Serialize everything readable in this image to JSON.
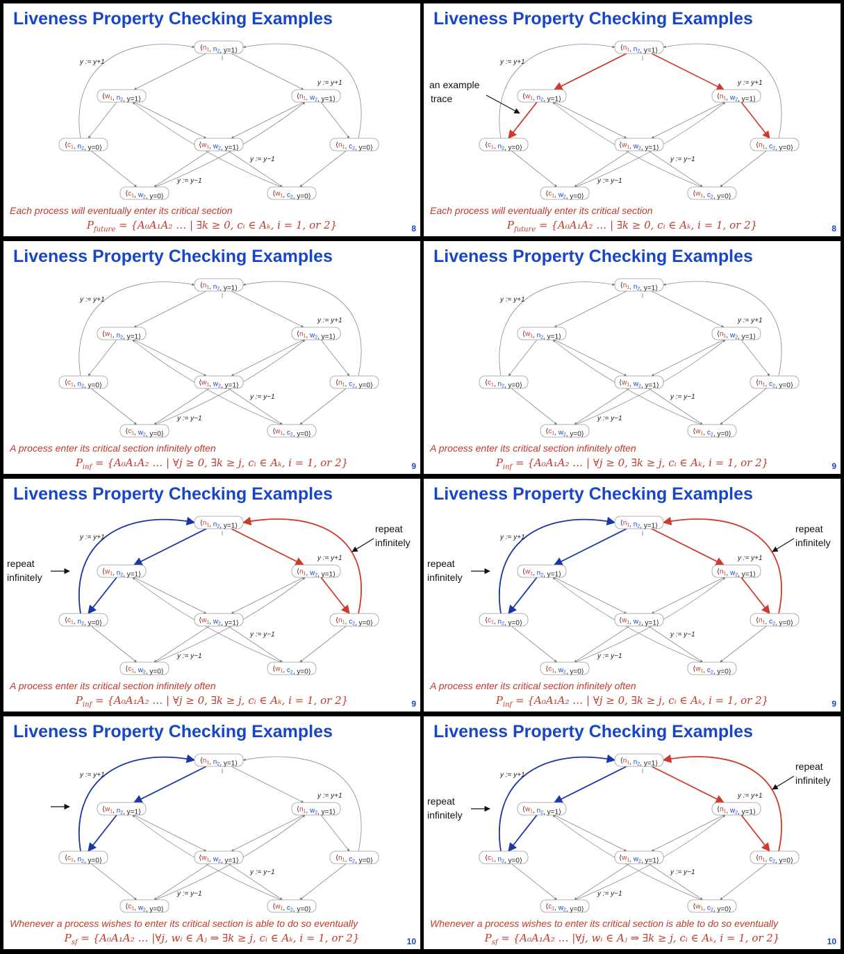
{
  "graph": {
    "nodes": [
      {
        "id": "n1n2y1",
        "parts": [
          "⟨",
          "n",
          "1",
          ", ",
          "n",
          "2",
          ", y=1⟩"
        ],
        "p1": "n",
        "p2": "n"
      },
      {
        "id": "w1n2y1",
        "parts": [
          "⟨",
          "w",
          "1",
          ", ",
          "n",
          "2",
          ", y=1⟩"
        ],
        "p1": "w",
        "p2": "n"
      },
      {
        "id": "n1w2y1",
        "parts": [
          "⟨",
          "n",
          "1",
          ", ",
          "w",
          "2",
          ", y=1⟩"
        ],
        "p1": "n",
        "p2": "w"
      },
      {
        "id": "c1n2y0",
        "parts": [
          "⟨",
          "c",
          "1",
          ", ",
          "n",
          "2",
          ", y=0⟩"
        ],
        "p1": "c",
        "p2": "n"
      },
      {
        "id": "w1w2y1",
        "parts": [
          "⟨",
          "w",
          "1",
          ", ",
          "w",
          "2",
          ", y=1⟩"
        ],
        "p1": "w",
        "p2": "w"
      },
      {
        "id": "n1c2y0",
        "parts": [
          "⟨",
          "n",
          "1",
          ", ",
          "c",
          "2",
          ", y=0⟩"
        ],
        "p1": "n",
        "p2": "c"
      },
      {
        "id": "c1w2y0",
        "parts": [
          "⟨",
          "c",
          "1",
          ", ",
          "w",
          "2",
          ", y=0⟩"
        ],
        "p1": "c",
        "p2": "w"
      },
      {
        "id": "w1c2y0",
        "parts": [
          "⟨",
          "w",
          "1",
          ", ",
          "c",
          "2",
          ", y=0⟩"
        ],
        "p1": "w",
        "p2": "c"
      }
    ],
    "edge_labels": [
      "y := y+1",
      "y := y+1",
      "y := y−1",
      "y := y−1"
    ]
  },
  "colors": {
    "p1": "#c0392b",
    "p2": "#1846c8",
    "red": "#d0392b",
    "blue": "#1a35a8",
    "title": "#1846c8"
  },
  "slides": [
    {
      "title": "Liveness Property Checking Examples",
      "desc": "Each process will eventually enter its critical section",
      "formula": "P_future = {A₀A₁A₂ … | ∃k ≥ 0, cᵢ ∈ Aₖ, i = 1, or 2}",
      "formula_name": "P",
      "formula_sub": "future",
      "formula_rest": " = {A₀A₁A₂ … | ∃k ≥ 0, cᵢ ∈ Aₖ, i = 1, or 2}",
      "page": "8",
      "annotations": []
    },
    {
      "title": "Liveness Property Checking Examples",
      "desc": "Each process will eventually enter its critical section",
      "formula_name": "P",
      "formula_sub": "future",
      "formula_rest": " = {A₀A₁A₂ … | ∃k ≥ 0, cᵢ ∈ Aₖ, i = 1, or 2}",
      "page": "8",
      "annotations": [
        "an example",
        "trace"
      ]
    },
    {
      "title": "Liveness Property Checking Examples",
      "desc": "A process enter its critical section infinitely often",
      "formula_name": "P",
      "formula_sub": "inf",
      "formula_rest": " = {A₀A₁A₂ … | ∀j ≥ 0, ∃k ≥ j, cᵢ ∈ Aₖ, i = 1, or 2}",
      "page": "9",
      "annotations": []
    },
    {
      "title": "Liveness Property Checking Examples",
      "desc": "A process enter its critical section infinitely often",
      "formula_name": "P",
      "formula_sub": "inf",
      "formula_rest": " = {A₀A₁A₂ … | ∀j ≥ 0, ∃k ≥ j, cᵢ ∈ Aₖ, i = 1, or 2}",
      "page": "9",
      "annotations": []
    },
    {
      "title": "Liveness Property Checking Examples",
      "desc": "A process enter its critical section infinitely often",
      "formula_name": "P",
      "formula_sub": "inf",
      "formula_rest": " = {A₀A₁A₂ … | ∀j ≥ 0, ∃k ≥ j, cᵢ ∈ Aₖ, i = 1, or 2}",
      "page": "9",
      "annotations": [
        "repeat",
        "infinitely",
        "repeat",
        "infinitely"
      ]
    },
    {
      "title": "Liveness Property Checking Examples",
      "desc": "A process enter its critical section infinitely often",
      "formula_name": "P",
      "formula_sub": "inf",
      "formula_rest": " = {A₀A₁A₂ … | ∀j ≥ 0, ∃k ≥ j, cᵢ ∈ Aₖ, i = 1, or 2}",
      "page": "9",
      "annotations": [
        "repeat",
        "infinitely",
        "repeat",
        "infinitely"
      ]
    },
    {
      "title": "Liveness Property Checking Examples",
      "desc": "Whenever a process wishes to enter its critical section is able to do so eventually",
      "formula_name": "P",
      "formula_sub": "sf",
      "formula_rest": " = {A₀A₁A₂ … |∀j, wᵢ ∈ Aⱼ ⇒ ∃k ≥ j, cᵢ ∈ Aₖ, i = 1, or 2}",
      "page": "10",
      "annotations": []
    },
    {
      "title": "Liveness Property Checking Examples",
      "desc": "Whenever a process wishes to enter its critical section is able to do so eventually",
      "formula_name": "P",
      "formula_sub": "sf",
      "formula_rest": " = {A₀A₁A₂ … |∀j, wᵢ ∈ Aⱼ ⇒ ∃k ≥ j, cᵢ ∈ Aₖ, i = 1, or 2}",
      "page": "10",
      "annotations": [
        "repeat",
        "infinitely",
        "repeat",
        "infinitely"
      ]
    }
  ]
}
